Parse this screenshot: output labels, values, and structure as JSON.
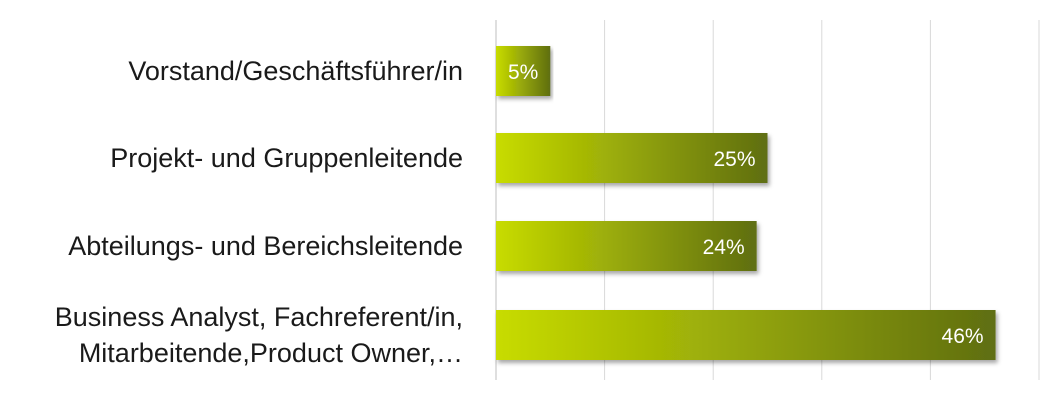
{
  "chart_data": {
    "type": "bar",
    "orientation": "horizontal",
    "categories": [
      [
        "Vorstand/Geschäftsführer/in"
      ],
      [
        "Projekt- und Gruppenleitende"
      ],
      [
        "Abteilungs- und Bereichsleitende"
      ],
      [
        "Business Analyst, Fachreferent/in,",
        "Mitarbeitende,Product Owner,…"
      ]
    ],
    "values": [
      5,
      25,
      24,
      46
    ],
    "value_labels": [
      "5%",
      "25%",
      "24%",
      "46%"
    ],
    "title": "",
    "xlabel": "",
    "ylabel": "",
    "xlim": [
      0,
      50
    ],
    "grid": true,
    "legend": "none",
    "colors": {
      "bar_light": "#c8dc00",
      "bar_dark": "#5f6e12",
      "grid": "#d9d9d9",
      "axis": "#bfbfbf",
      "label_text": "#1a1a1a",
      "value_text": "#ffffff"
    }
  }
}
